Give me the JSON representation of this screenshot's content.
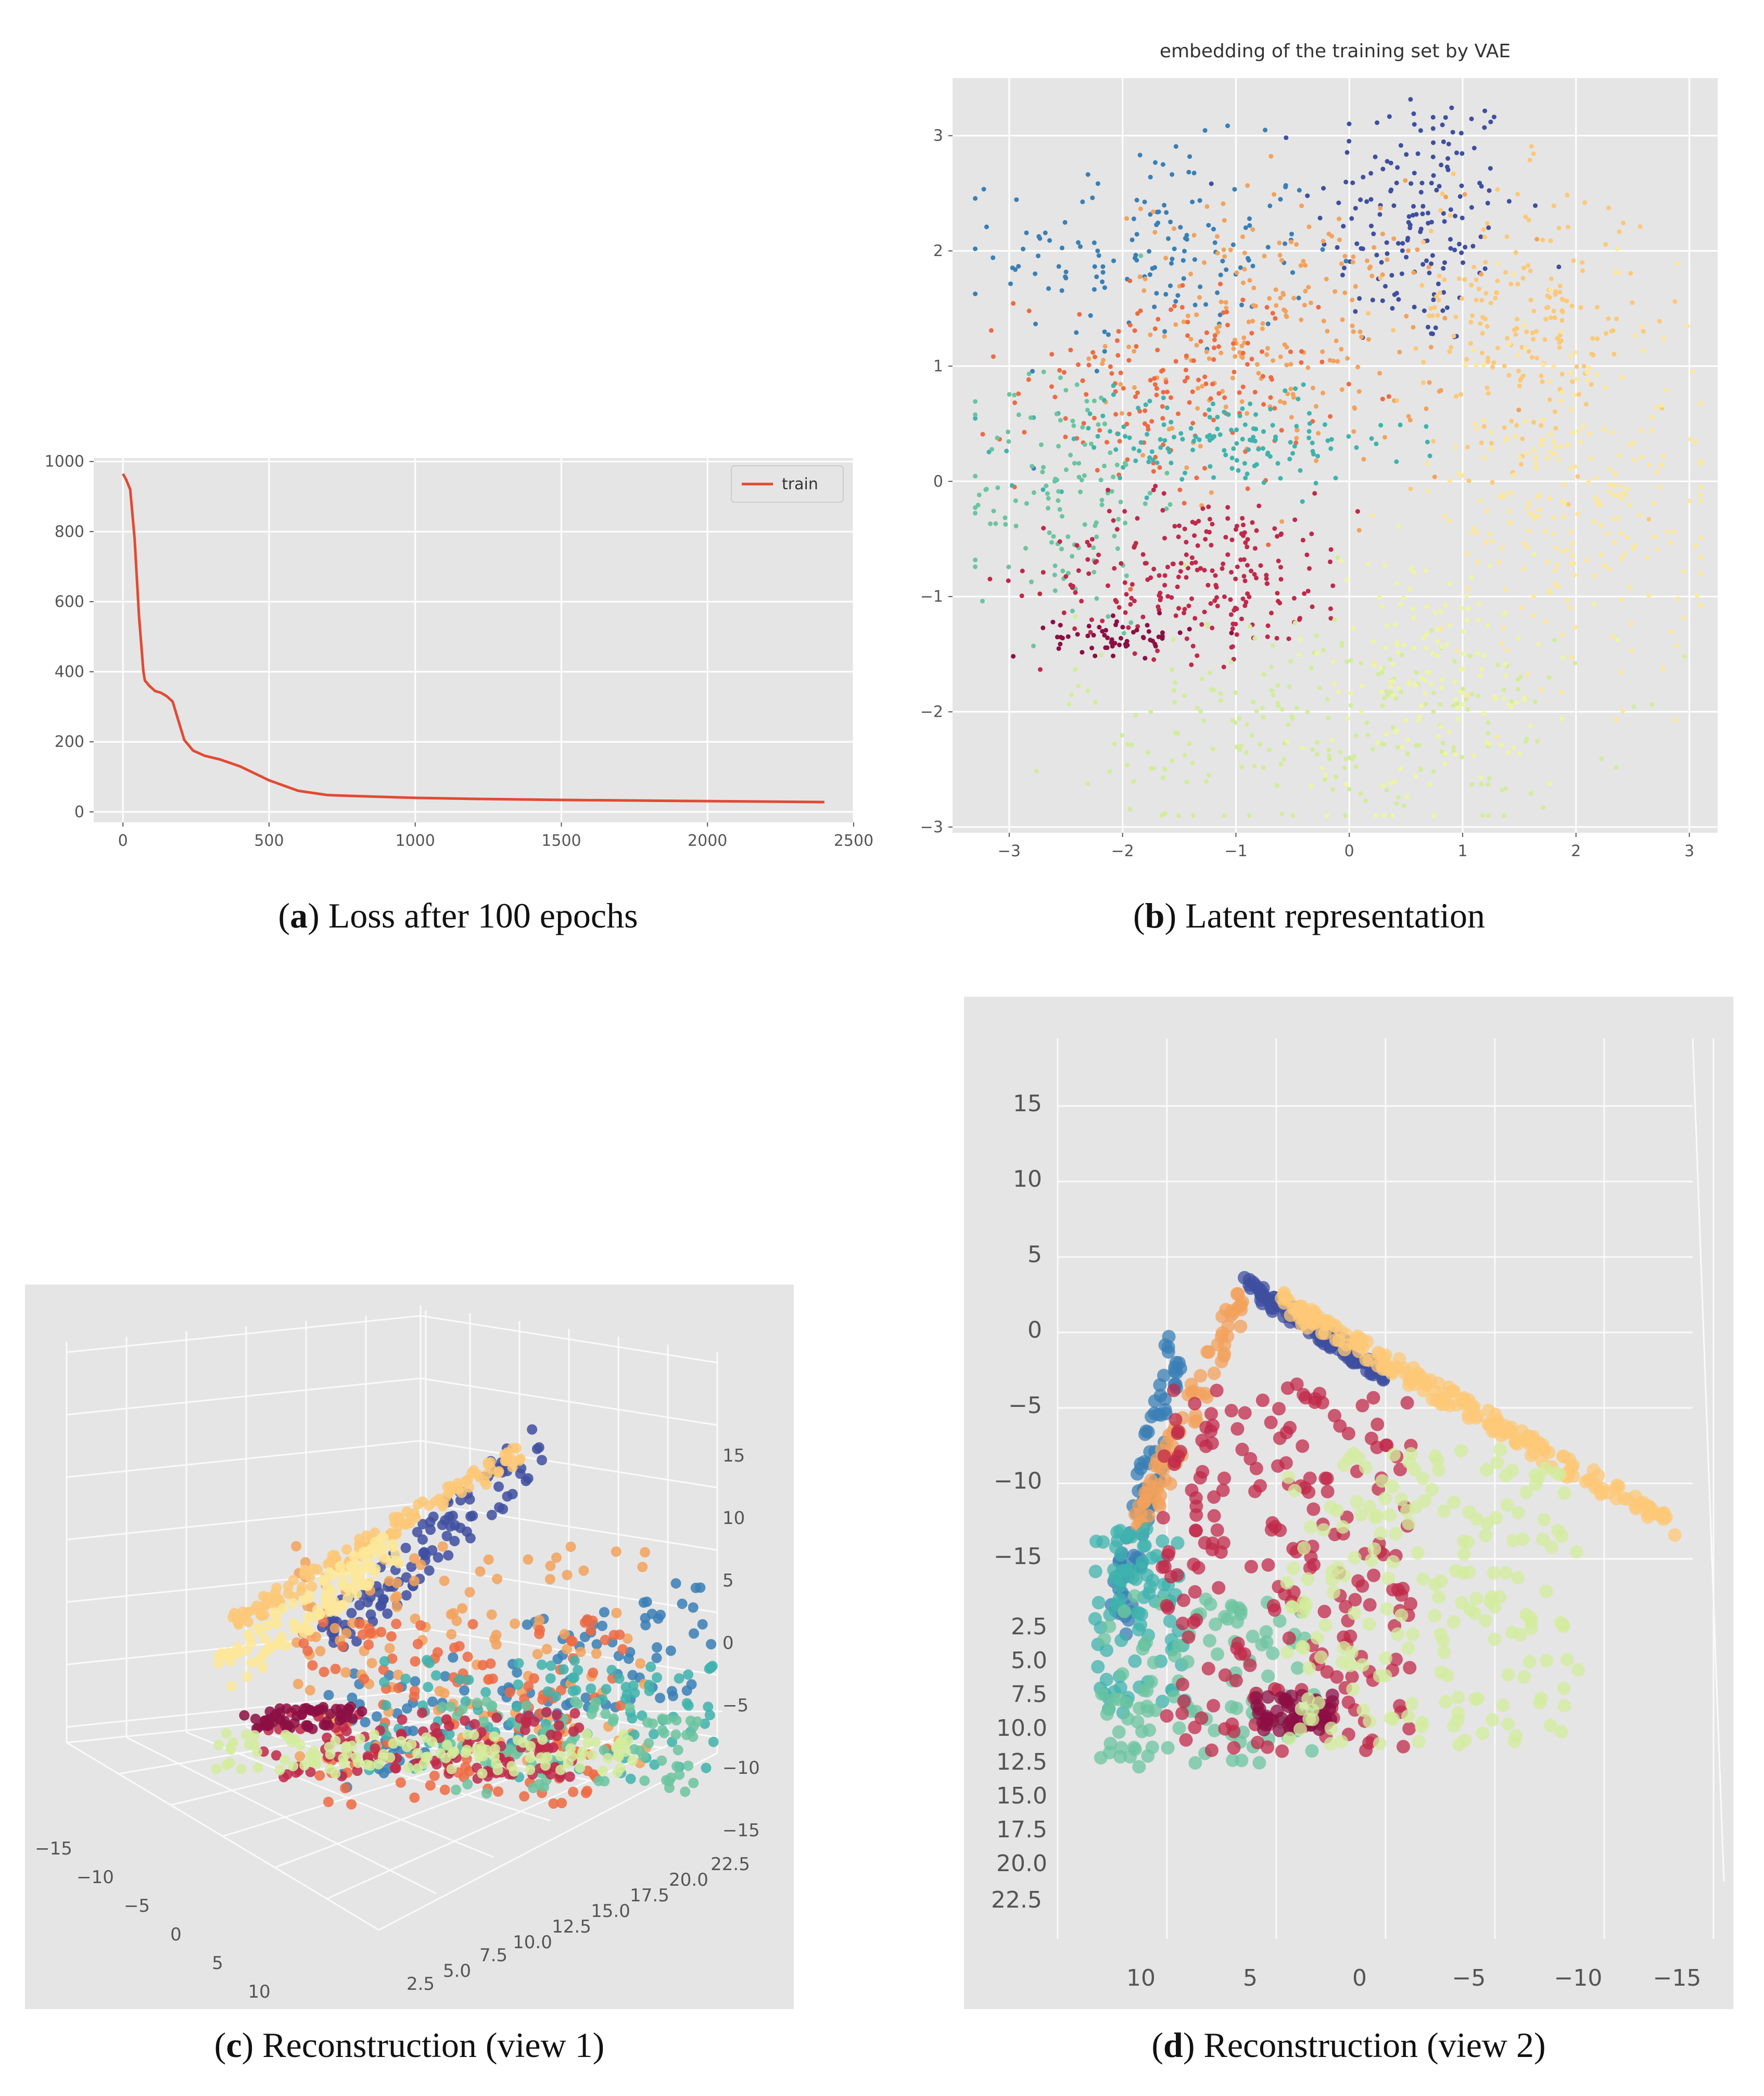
{
  "chart_data": [
    {
      "id": "a",
      "type": "line",
      "title": "",
      "xlabel": "",
      "ylabel": "",
      "xlim": [
        -100,
        2500
      ],
      "ylim": [
        -30,
        1010
      ],
      "xticks": [
        0,
        500,
        1000,
        1500,
        2000,
        2500
      ],
      "yticks": [
        0,
        200,
        400,
        600,
        800,
        1000
      ],
      "xtick_labels": [
        "0",
        "500",
        "1000",
        "1500",
        "2000",
        "2500"
      ],
      "ytick_labels": [
        "0",
        "200",
        "400",
        "600",
        "800",
        "1000"
      ],
      "legend": {
        "position": "top-right",
        "entries": [
          "train"
        ]
      },
      "series": [
        {
          "name": "train",
          "color": "#e24a33",
          "x": [
            0,
            10,
            25,
            40,
            55,
            70,
            75,
            90,
            110,
            130,
            150,
            170,
            190,
            210,
            240,
            280,
            330,
            400,
            500,
            600,
            700,
            800,
            1000,
            1200,
            1500,
            1800,
            2100,
            2400
          ],
          "y": [
            965,
            950,
            920,
            780,
            560,
            400,
            375,
            360,
            345,
            340,
            330,
            315,
            260,
            205,
            175,
            160,
            150,
            130,
            90,
            60,
            48,
            45,
            40,
            37,
            34,
            32,
            30,
            28
          ]
        }
      ]
    },
    {
      "id": "b",
      "type": "scatter",
      "title": "embedding of the training set by VAE",
      "xlabel": "",
      "ylabel": "",
      "xlim": [
        -3.5,
        3.25
      ],
      "ylim": [
        -3.05,
        3.5
      ],
      "xticks": [
        -3,
        -2,
        -1,
        0,
        1,
        2,
        3
      ],
      "yticks": [
        -3,
        -2,
        -1,
        0,
        1,
        2,
        3
      ],
      "xtick_labels": [
        "−3",
        "−2",
        "−1",
        "0",
        "1",
        "2",
        "3"
      ],
      "ytick_labels": [
        "−3",
        "−2",
        "−1",
        "0",
        "1",
        "2",
        "3"
      ],
      "clusters": [
        {
          "name": "navy",
          "color": "#3f4fa0",
          "center": [
            0.6,
            2.3
          ],
          "spread": [
            0.45,
            0.6
          ],
          "n": 170
        },
        {
          "name": "blue",
          "color": "#3a7fb6",
          "center": [
            -1.7,
            2.0
          ],
          "spread": [
            0.7,
            0.45
          ],
          "n": 150
        },
        {
          "name": "orange",
          "color": "#f3a25c",
          "center": [
            -0.6,
            1.3
          ],
          "spread": [
            0.75,
            0.6
          ],
          "n": 230
        },
        {
          "name": "coral",
          "color": "#ef6a43",
          "center": [
            -1.6,
            0.8
          ],
          "spread": [
            0.65,
            0.45
          ],
          "n": 170
        },
        {
          "name": "teal",
          "color": "#3fb3ad",
          "center": [
            -1.2,
            0.35
          ],
          "spread": [
            0.85,
            0.2
          ],
          "n": 150
        },
        {
          "name": "mint",
          "color": "#6cc4a0",
          "center": [
            -2.5,
            -0.1
          ],
          "spread": [
            0.4,
            0.6
          ],
          "n": 130
        },
        {
          "name": "red",
          "color": "#c0294a",
          "center": [
            -1.3,
            -0.8
          ],
          "spread": [
            0.7,
            0.35
          ],
          "n": 230
        },
        {
          "name": "maroon",
          "color": "#8c0f44",
          "center": [
            -2.0,
            -1.35
          ],
          "spread": [
            0.3,
            0.08
          ],
          "n": 60
        },
        {
          "name": "gold",
          "color": "#fdc877",
          "center": [
            1.5,
            1.4
          ],
          "spread": [
            0.55,
            0.6
          ],
          "n": 200
        },
        {
          "name": "pale",
          "color": "#fde79a",
          "center": [
            2.0,
            -0.1
          ],
          "spread": [
            0.6,
            0.8
          ],
          "n": 260
        },
        {
          "name": "lime",
          "color": "#d3ec9c",
          "center": [
            -0.2,
            -2.1
          ],
          "spread": [
            1.1,
            0.5
          ],
          "n": 230
        },
        {
          "name": "lemon",
          "color": "#eef5a2",
          "center": [
            0.7,
            -1.7
          ],
          "spread": [
            0.6,
            0.55
          ],
          "n": 160
        }
      ]
    },
    {
      "id": "c",
      "type": "scatter",
      "title": "",
      "xlabel": "",
      "ylabel": "",
      "zlabel": "",
      "xtick_labels": [
        "−15",
        "−10",
        "−5",
        "0",
        "5",
        "10"
      ],
      "ytick_labels": [
        "2.5",
        "5.0",
        "7.5",
        "10.0",
        "12.5",
        "15.0",
        "17.5",
        "20.0",
        "22.5"
      ],
      "ztick_labels": [
        "15",
        "10",
        "5",
        "0",
        "−5",
        "−10",
        "−15"
      ],
      "clusters": [
        {
          "name": "navy",
          "color": "#3f4fa0",
          "n": 110
        },
        {
          "name": "blue",
          "color": "#3a7fb6",
          "n": 120
        },
        {
          "name": "orange",
          "color": "#f3a25c",
          "n": 130
        },
        {
          "name": "coral",
          "color": "#ef6a43",
          "n": 140
        },
        {
          "name": "teal",
          "color": "#3fb3ad",
          "n": 110
        },
        {
          "name": "mint",
          "color": "#6cc4a0",
          "n": 90
        },
        {
          "name": "red",
          "color": "#c0294a",
          "n": 120
        },
        {
          "name": "maroon",
          "color": "#8c0f44",
          "n": 60
        },
        {
          "name": "gold",
          "color": "#fdc877",
          "n": 130
        },
        {
          "name": "pale",
          "color": "#fde79a",
          "n": 120
        },
        {
          "name": "lime",
          "color": "#d3ec9c",
          "n": 120
        }
      ]
    },
    {
      "id": "d",
      "type": "scatter",
      "title": "",
      "xlabel": "",
      "ylabel": "",
      "zlabel": "",
      "xtick_labels": [
        "10",
        "5",
        "0",
        "−5",
        "−10",
        "−15"
      ],
      "ytick_labels": [
        "2.5",
        "5.0",
        "7.5",
        "10.0",
        "12.5",
        "15.0",
        "17.5",
        "20.0",
        "22.5"
      ],
      "ztick_labels": [
        "15",
        "10",
        "5",
        "0",
        "−5",
        "−10",
        "−15"
      ],
      "clusters": [
        {
          "name": "navy",
          "color": "#3f4fa0",
          "n": 110
        },
        {
          "name": "blue",
          "color": "#3a7fb6",
          "n": 90
        },
        {
          "name": "orange",
          "color": "#f3a25c",
          "n": 80
        },
        {
          "name": "teal",
          "color": "#3fb3ad",
          "n": 90
        },
        {
          "name": "mint",
          "color": "#6cc4a0",
          "n": 110
        },
        {
          "name": "red",
          "color": "#c0294a",
          "n": 220
        },
        {
          "name": "maroon",
          "color": "#8c0f44",
          "n": 50
        },
        {
          "name": "gold",
          "color": "#fdc877",
          "n": 200
        },
        {
          "name": "lime",
          "color": "#d3ec9c",
          "n": 200
        }
      ]
    }
  ],
  "captions": {
    "a": {
      "letter": "a",
      "text": " Loss after 100 epochs"
    },
    "b": {
      "letter": "b",
      "text": " Latent representation"
    },
    "c": {
      "letter": "c",
      "text": " Reconstruction (view 1)"
    },
    "d": {
      "letter": "d",
      "text": " Reconstruction (view 2)"
    }
  }
}
